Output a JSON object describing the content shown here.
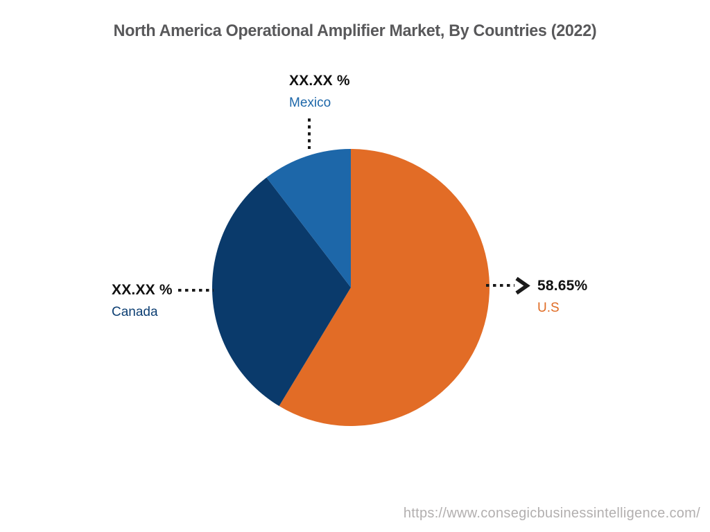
{
  "title": "North America Operational Amplifier Market, By Countries (2022)",
  "watermark": "https://www.consegicbusinessintelligence.com/",
  "chart_data": {
    "type": "pie",
    "title": "North America Operational Amplifier Market, By Countries (2022)",
    "start_angle_deg": -90,
    "direction": "clockwise",
    "legend_position": "none",
    "slices": [
      {
        "id": "us",
        "name": "U.S",
        "value": 58.65,
        "display_value": "58.65%",
        "color": "#E26C26",
        "label_color": "#E06C25",
        "callout_side": "right"
      },
      {
        "id": "canada",
        "name": "Canada",
        "value": 30.95,
        "display_value": "XX.XX %",
        "color": "#0A3A6B",
        "label_color": "#0D3F73",
        "callout_side": "left"
      },
      {
        "id": "mexico",
        "name": "Mexico",
        "value": 10.4,
        "display_value": "XX.XX %",
        "color": "#1D67A9",
        "label_color": "#1D67A9",
        "callout_side": "top"
      }
    ]
  }
}
